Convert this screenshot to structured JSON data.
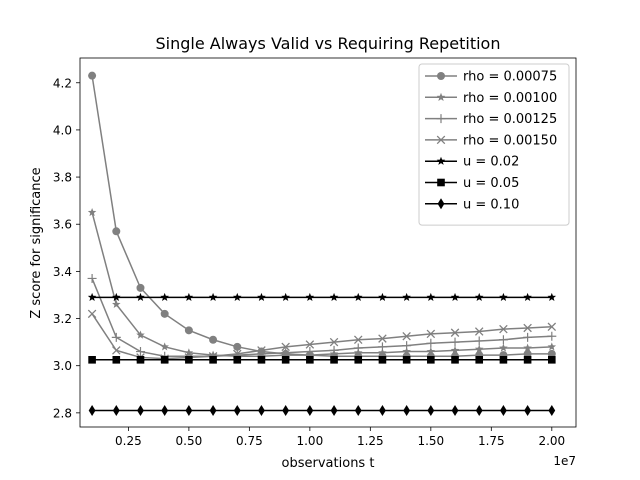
{
  "chart_data": {
    "type": "line",
    "title": "Single Always Valid vs Requiring Repetition",
    "xlabel": "observations t",
    "ylabel": "Z score for significance",
    "x_offset_label": "1e7",
    "xlim": [
      0.05,
      2.1
    ],
    "ylim": [
      2.74,
      4.305
    ],
    "grid": false,
    "legend_position": "top-right",
    "x_ticks": [
      {
        "value": 0.25,
        "label": "0.25"
      },
      {
        "value": 0.5,
        "label": "0.50"
      },
      {
        "value": 0.75,
        "label": "0.75"
      },
      {
        "value": 1.0,
        "label": "1.00"
      },
      {
        "value": 1.25,
        "label": "1.25"
      },
      {
        "value": 1.5,
        "label": "1.50"
      },
      {
        "value": 1.75,
        "label": "1.75"
      },
      {
        "value": 2.0,
        "label": "2.00"
      }
    ],
    "y_ticks": [
      {
        "value": 2.8,
        "label": "2.8"
      },
      {
        "value": 3.0,
        "label": "3.0"
      },
      {
        "value": 3.2,
        "label": "3.2"
      },
      {
        "value": 3.4,
        "label": "3.4"
      },
      {
        "value": 3.6,
        "label": "3.6"
      },
      {
        "value": 3.8,
        "label": "3.8"
      },
      {
        "value": 4.0,
        "label": "4.0"
      },
      {
        "value": 4.2,
        "label": "4.2"
      }
    ],
    "x": [
      0.1,
      0.2,
      0.3,
      0.4,
      0.5,
      0.6,
      0.7,
      0.8,
      0.9,
      1.0,
      1.1,
      1.2,
      1.3,
      1.4,
      1.5,
      1.6,
      1.7,
      1.8,
      1.9,
      2.0
    ],
    "series": [
      {
        "name": "rho = 0.00075",
        "label": "rho = 0.00075",
        "color": "#808080",
        "marker": "circle",
        "values": [
          4.23,
          3.57,
          3.33,
          3.22,
          3.15,
          3.11,
          3.08,
          3.06,
          3.05,
          3.045,
          3.04,
          3.04,
          3.04,
          3.04,
          3.04,
          3.04,
          3.045,
          3.045,
          3.05,
          3.05
        ]
      },
      {
        "name": "rho = 0.00100",
        "label": "rho = 0.00100",
        "color": "#808080",
        "marker": "star",
        "values": [
          3.65,
          3.26,
          3.13,
          3.08,
          3.055,
          3.045,
          3.04,
          3.04,
          3.045,
          3.045,
          3.05,
          3.055,
          3.055,
          3.06,
          3.06,
          3.065,
          3.07,
          3.075,
          3.075,
          3.08
        ]
      },
      {
        "name": "rho = 0.00125",
        "label": "rho = 0.00125",
        "color": "#808080",
        "marker": "plus",
        "values": [
          3.37,
          3.12,
          3.06,
          3.04,
          3.04,
          3.04,
          3.045,
          3.05,
          3.055,
          3.06,
          3.065,
          3.075,
          3.08,
          3.085,
          3.095,
          3.1,
          3.105,
          3.11,
          3.12,
          3.125
        ]
      },
      {
        "name": "rho = 0.00150",
        "label": "rho = 0.00150",
        "color": "#808080",
        "marker": "x",
        "values": [
          3.22,
          3.065,
          3.035,
          3.03,
          3.035,
          3.04,
          3.05,
          3.065,
          3.08,
          3.09,
          3.1,
          3.11,
          3.115,
          3.125,
          3.135,
          3.14,
          3.145,
          3.155,
          3.16,
          3.165
        ]
      },
      {
        "name": "u = 0.02",
        "label": "u = 0.02",
        "color": "#000000",
        "marker": "star",
        "values": [
          3.29,
          3.29,
          3.29,
          3.29,
          3.29,
          3.29,
          3.29,
          3.29,
          3.29,
          3.29,
          3.29,
          3.29,
          3.29,
          3.29,
          3.29,
          3.29,
          3.29,
          3.29,
          3.29,
          3.29
        ]
      },
      {
        "name": "u = 0.05",
        "label": "u = 0.05",
        "color": "#000000",
        "marker": "square",
        "values": [
          3.025,
          3.025,
          3.025,
          3.025,
          3.025,
          3.025,
          3.025,
          3.025,
          3.025,
          3.025,
          3.025,
          3.025,
          3.025,
          3.025,
          3.025,
          3.025,
          3.025,
          3.025,
          3.025,
          3.025
        ]
      },
      {
        "name": "u = 0.10",
        "label": "u = 0.10",
        "color": "#000000",
        "marker": "diamond",
        "values": [
          2.81,
          2.81,
          2.81,
          2.81,
          2.81,
          2.81,
          2.81,
          2.81,
          2.81,
          2.81,
          2.81,
          2.81,
          2.81,
          2.81,
          2.81,
          2.81,
          2.81,
          2.81,
          2.81,
          2.81
        ]
      }
    ]
  }
}
